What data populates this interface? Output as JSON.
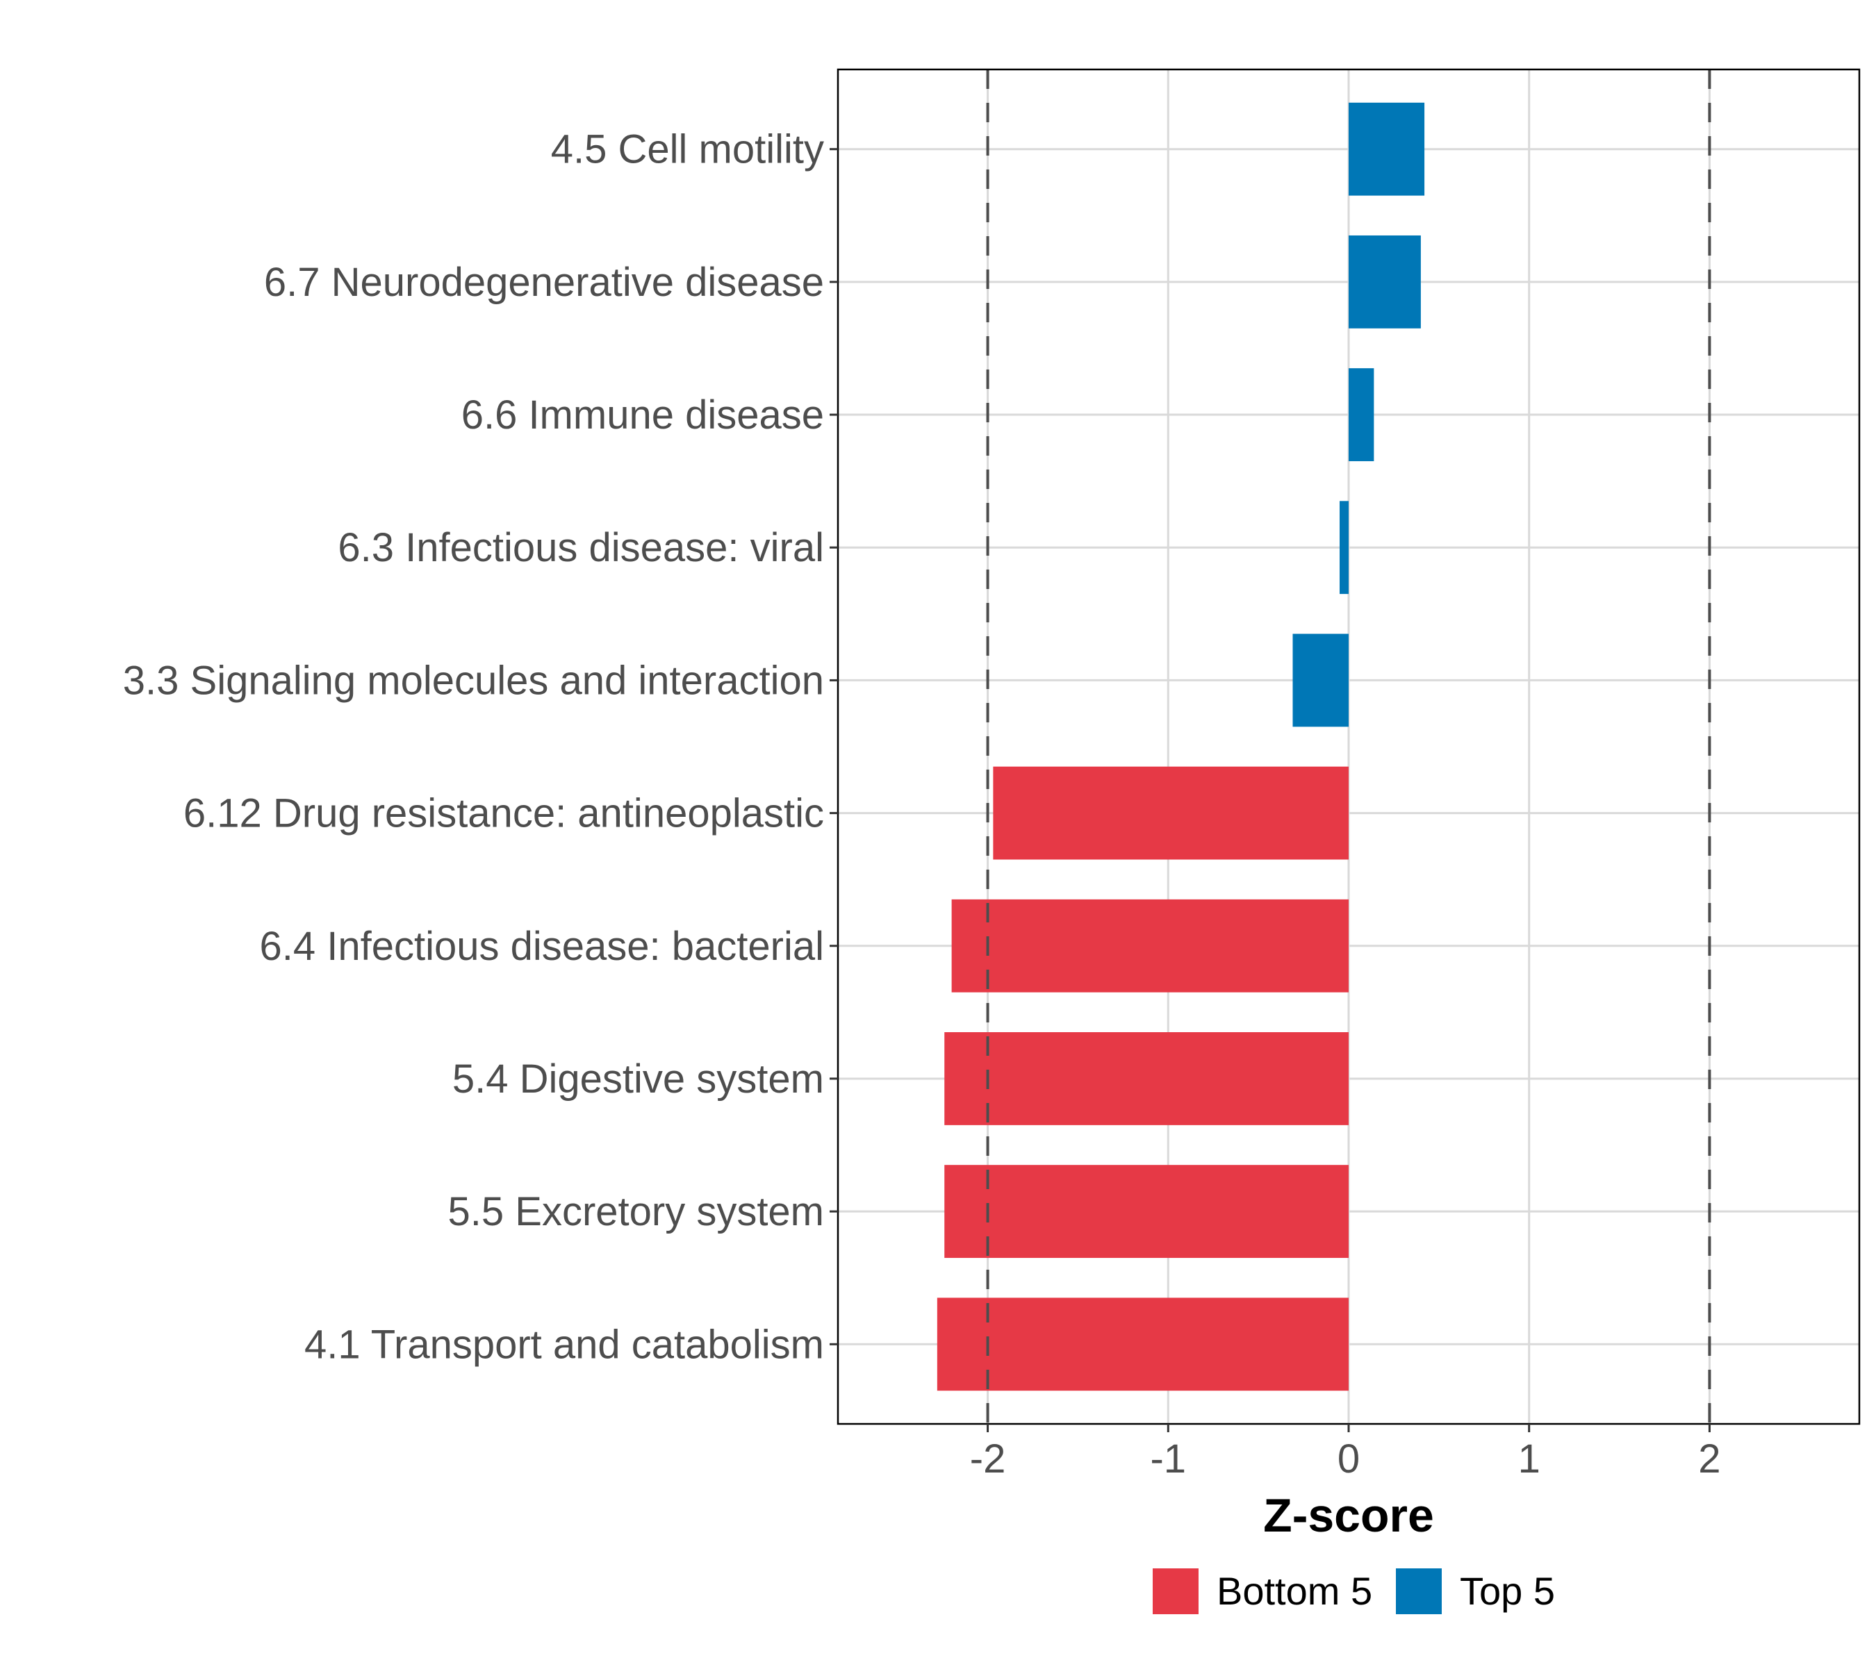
{
  "chart_data": {
    "type": "bar",
    "orientation": "horizontal",
    "title": "",
    "xlabel": "Z-score",
    "ylabel": "",
    "xlim": [
      -2.83,
      2.83
    ],
    "xticks": [
      -2,
      -1,
      0,
      1,
      2
    ],
    "xtick_labels": [
      "-2",
      "-1",
      "0",
      "1",
      "2"
    ],
    "reference_lines": [
      -2,
      2
    ],
    "grid": true,
    "categories": [
      "4.5 Cell motility",
      "6.7 Neurodegenerative disease",
      "6.6 Immune disease",
      "6.3 Infectious disease: viral",
      "3.3 Signaling molecules and interaction",
      "6.12 Drug resistance: antineoplastic",
      "6.4 Infectious disease: bacterial",
      "5.4 Digestive system",
      "5.5 Excretory system",
      "4.1 Transport and catabolism"
    ],
    "values": [
      0.42,
      0.4,
      0.14,
      -0.05,
      -0.31,
      -1.97,
      -2.2,
      -2.24,
      -2.24,
      -2.28
    ],
    "groups": [
      "Top 5",
      "Top 5",
      "Top 5",
      "Top 5",
      "Top 5",
      "Bottom 5",
      "Bottom 5",
      "Bottom 5",
      "Bottom 5",
      "Bottom 5"
    ],
    "legend": {
      "position": "bottom",
      "entries": [
        {
          "label": "Bottom 5",
          "color": "#E63946"
        },
        {
          "label": "Top 5",
          "color": "#0077B6"
        }
      ]
    },
    "colors": {
      "Bottom 5": "#E63946",
      "Top 5": "#0077B6"
    }
  }
}
